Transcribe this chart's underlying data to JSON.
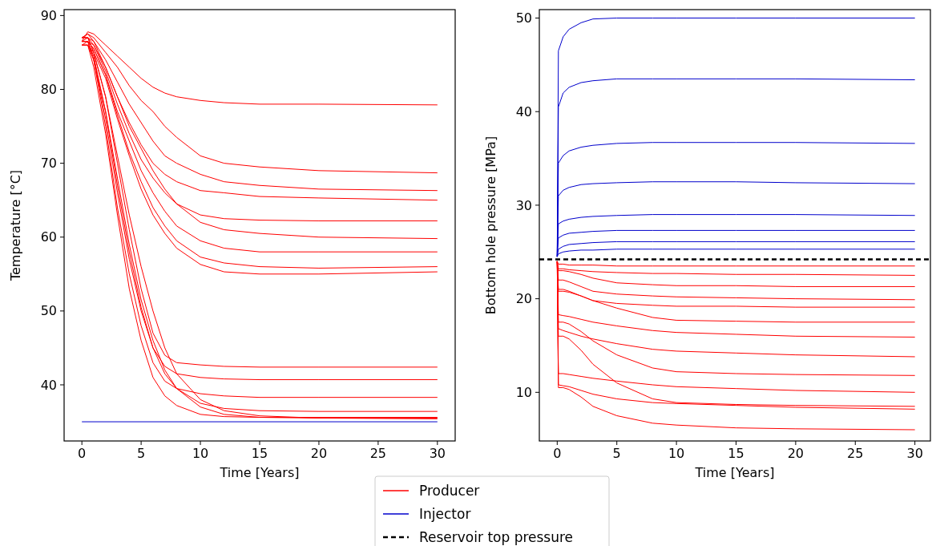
{
  "chart_data": [
    {
      "type": "line",
      "xlabel": "Time [Years]",
      "ylabel": "Temperature [°C]",
      "xlim": [
        -1.5,
        31.5
      ],
      "ylim": [
        32.4,
        90.8
      ],
      "xticks": [
        0,
        5,
        10,
        15,
        20,
        25,
        30
      ],
      "yticks": [
        40,
        50,
        60,
        70,
        80,
        90
      ],
      "grid": false,
      "legend": false,
      "line_style": "solid",
      "marker": "none",
      "x": [
        0,
        0.5,
        1,
        2,
        3,
        4,
        5,
        6,
        7,
        8,
        10,
        12,
        15,
        20,
        30
      ],
      "series": [
        {
          "color": "#ff0000",
          "values": [
            86.5,
            87.8,
            87.5,
            86,
            84.5,
            83,
            81.5,
            80.3,
            79.5,
            79,
            78.5,
            78.2,
            78,
            78,
            77.9
          ]
        },
        {
          "color": "#ff0000",
          "values": [
            87,
            87.5,
            87,
            85,
            83,
            80.5,
            78.5,
            77,
            75,
            73.5,
            71,
            70,
            69.5,
            69,
            68.7
          ]
        },
        {
          "color": "#ff0000",
          "values": [
            86.5,
            87,
            86.5,
            84,
            81,
            78,
            75.5,
            73,
            71,
            70,
            68.5,
            67.5,
            67,
            66.5,
            66.3
          ]
        },
        {
          "color": "#ff0000",
          "values": [
            87,
            87.5,
            86.5,
            83,
            79,
            75.5,
            72.5,
            70,
            68.5,
            67.5,
            66.3,
            66,
            65.5,
            65.3,
            65
          ]
        },
        {
          "color": "#ff0000",
          "values": [
            86.5,
            86.5,
            86,
            82.5,
            78,
            74,
            70.5,
            68,
            66,
            64.5,
            63,
            62.5,
            62.3,
            62.2,
            62.2
          ]
        },
        {
          "color": "#ff0000",
          "values": [
            87,
            87,
            86,
            83,
            79,
            75,
            72,
            69,
            66.5,
            64.5,
            62,
            61,
            60.5,
            60,
            59.8
          ]
        },
        {
          "color": "#ff0000",
          "values": [
            86,
            86.5,
            85.5,
            82,
            77,
            73,
            69,
            66,
            63.5,
            61.5,
            59.5,
            58.5,
            58,
            58,
            58
          ]
        },
        {
          "color": "#ff0000",
          "values": [
            86.5,
            86.5,
            85.5,
            82,
            76.5,
            71.5,
            67.5,
            64,
            61.5,
            59.5,
            57.3,
            56.5,
            56,
            55.8,
            56
          ]
        },
        {
          "color": "#ff0000",
          "values": [
            86,
            86,
            85,
            81.5,
            76,
            71,
            66.5,
            63,
            60.5,
            58.5,
            56.3,
            55.3,
            55,
            55,
            55.3
          ]
        },
        {
          "color": "#ff0000",
          "values": [
            87,
            87,
            85,
            79,
            70,
            61,
            53,
            47,
            44,
            43,
            42.7,
            42.5,
            42.4,
            42.4,
            42.4
          ]
        },
        {
          "color": "#ff0000",
          "values": [
            86.5,
            86.5,
            84.5,
            77,
            67,
            58,
            50.5,
            45,
            42.5,
            41.5,
            41,
            40.8,
            40.7,
            40.7,
            40.7
          ]
        },
        {
          "color": "#ff0000",
          "values": [
            86,
            86,
            84,
            75,
            64,
            55,
            48,
            43,
            40.5,
            39.5,
            38.8,
            38.5,
            38.3,
            38.3,
            38.3
          ]
        },
        {
          "color": "#ff0000",
          "values": [
            86.5,
            86.5,
            84,
            76,
            66,
            57,
            50,
            45,
            41.5,
            39.5,
            37.5,
            36.8,
            36.5,
            36.4,
            36.4
          ]
        },
        {
          "color": "#ff0000",
          "values": [
            86,
            86,
            83,
            74,
            63,
            53,
            46,
            41,
            38.5,
            37.2,
            36,
            35.7,
            35.6,
            35.6,
            35.6
          ]
        },
        {
          "color": "#ff0000",
          "values": [
            86.5,
            86.5,
            84,
            77,
            68,
            59,
            51.5,
            46,
            42,
            39.5,
            37,
            36,
            35.6,
            35.5,
            35.5
          ]
        },
        {
          "color": "#ff0000",
          "values": [
            87,
            87,
            85,
            79,
            71,
            63,
            56,
            50,
            45,
            41.5,
            38,
            36.5,
            35.8,
            35.5,
            35.4
          ]
        },
        {
          "color": "#0000cc",
          "x": [
            0,
            30
          ],
          "values": [
            35,
            35
          ]
        }
      ]
    },
    {
      "type": "line",
      "xlabel": "Time [Years]",
      "ylabel": "Bottom hole pressure [MPa]",
      "xlim": [
        -1.5,
        31.3
      ],
      "ylim": [
        4.8,
        50.9
      ],
      "xticks": [
        0,
        5,
        10,
        15,
        20,
        25,
        30
      ],
      "yticks": [
        10,
        20,
        30,
        40,
        50
      ],
      "grid": false,
      "legend": "bottom left",
      "line_style": "solid",
      "marker": "none",
      "x": [
        0,
        0.1,
        0.5,
        1,
        2,
        3,
        5,
        8,
        10,
        15,
        20,
        30
      ],
      "ref_lines": [
        {
          "axis": "y",
          "value": 24.2,
          "label": "Reservoir top pressure",
          "color": "#000000",
          "line_style": "dashed"
        }
      ],
      "series": [
        {
          "name": "Producer",
          "color": "#ff0000",
          "values": [
            24,
            23.7,
            23.7,
            23.6,
            23.6,
            23.6,
            23.5,
            23.5,
            23.5,
            23.5,
            23.5,
            23.5
          ]
        },
        {
          "color": "#ff0000",
          "values": [
            24,
            23.2,
            23.2,
            23.1,
            23,
            22.9,
            22.8,
            22.7,
            22.7,
            22.6,
            22.6,
            22.5
          ]
        },
        {
          "color": "#ff0000",
          "values": [
            24,
            23,
            23,
            22.9,
            22.6,
            22.2,
            21.7,
            21.5,
            21.4,
            21.4,
            21.3,
            21.3
          ]
        },
        {
          "color": "#ff0000",
          "values": [
            24,
            20.8,
            20.8,
            20.7,
            20.3,
            19.8,
            19.5,
            19.3,
            19.2,
            19.2,
            19.1,
            19.1
          ]
        },
        {
          "color": "#ff0000",
          "values": [
            24,
            21,
            21,
            20.8,
            20.3,
            19.8,
            19,
            18,
            17.7,
            17.6,
            17.5,
            17.5
          ]
        },
        {
          "color": "#ff0000",
          "values": [
            24,
            17.5,
            17.5,
            17.3,
            16.5,
            15.5,
            14,
            12.6,
            12.2,
            12,
            11.9,
            11.8
          ]
        },
        {
          "color": "#ff0000",
          "values": [
            24,
            16,
            16,
            15.7,
            14.5,
            13,
            11,
            9.3,
            8.9,
            8.7,
            8.6,
            8.5
          ]
        },
        {
          "color": "#ff0000",
          "values": [
            24,
            10.5,
            10.5,
            10.3,
            9.5,
            8.5,
            7.5,
            6.7,
            6.5,
            6.2,
            6.1,
            6
          ]
        },
        {
          "color": "#ff0000",
          "values": [
            24,
            16.8,
            16.6,
            16.4,
            16,
            15.7,
            15.2,
            14.6,
            14.4,
            14.2,
            14,
            13.8
          ]
        },
        {
          "color": "#ff0000",
          "values": [
            24,
            12,
            12,
            11.9,
            11.7,
            11.5,
            11.2,
            10.8,
            10.6,
            10.4,
            10.2,
            10
          ]
        },
        {
          "color": "#ff0000",
          "values": [
            24,
            10.8,
            10.7,
            10.6,
            10.2,
            9.8,
            9.3,
            8.9,
            8.8,
            8.6,
            8.4,
            8.2
          ]
        },
        {
          "color": "#ff0000",
          "values": [
            24,
            22,
            22,
            21.8,
            21.3,
            20.8,
            20.5,
            20.3,
            20.2,
            20.1,
            20,
            19.9
          ]
        },
        {
          "color": "#ff0000",
          "values": [
            24,
            18.3,
            18.2,
            18.1,
            17.8,
            17.5,
            17.1,
            16.6,
            16.4,
            16.2,
            16,
            15.9
          ]
        },
        {
          "name": "Injector",
          "color": "#0000cc",
          "values": [
            24.5,
            46.5,
            48,
            48.8,
            49.5,
            49.9,
            50,
            50,
            50,
            50,
            50,
            50
          ]
        },
        {
          "color": "#0000cc",
          "values": [
            24.5,
            40.5,
            42,
            42.6,
            43.1,
            43.3,
            43.5,
            43.5,
            43.5,
            43.5,
            43.5,
            43.4
          ]
        },
        {
          "color": "#0000cc",
          "values": [
            24.5,
            34.5,
            35.3,
            35.8,
            36.2,
            36.4,
            36.6,
            36.7,
            36.7,
            36.7,
            36.7,
            36.6
          ]
        },
        {
          "color": "#0000cc",
          "values": [
            24.5,
            31,
            31.6,
            31.9,
            32.2,
            32.3,
            32.4,
            32.5,
            32.5,
            32.5,
            32.4,
            32.3
          ]
        },
        {
          "color": "#0000cc",
          "values": [
            24.5,
            28,
            28.3,
            28.5,
            28.7,
            28.8,
            28.9,
            29,
            29,
            29,
            29,
            28.9
          ]
        },
        {
          "color": "#0000cc",
          "values": [
            24.5,
            26.5,
            26.8,
            27,
            27.1,
            27.2,
            27.3,
            27.3,
            27.3,
            27.3,
            27.3,
            27.3
          ]
        },
        {
          "color": "#0000cc",
          "values": [
            24.5,
            25.3,
            25.6,
            25.8,
            25.9,
            26,
            26.1,
            26.1,
            26.1,
            26.1,
            26.1,
            26.1
          ]
        },
        {
          "color": "#0000cc",
          "values": [
            24.5,
            24.8,
            25,
            25.1,
            25.2,
            25.2,
            25.3,
            25.3,
            25.3,
            25.3,
            25.3,
            25.3
          ]
        }
      ]
    }
  ]
}
